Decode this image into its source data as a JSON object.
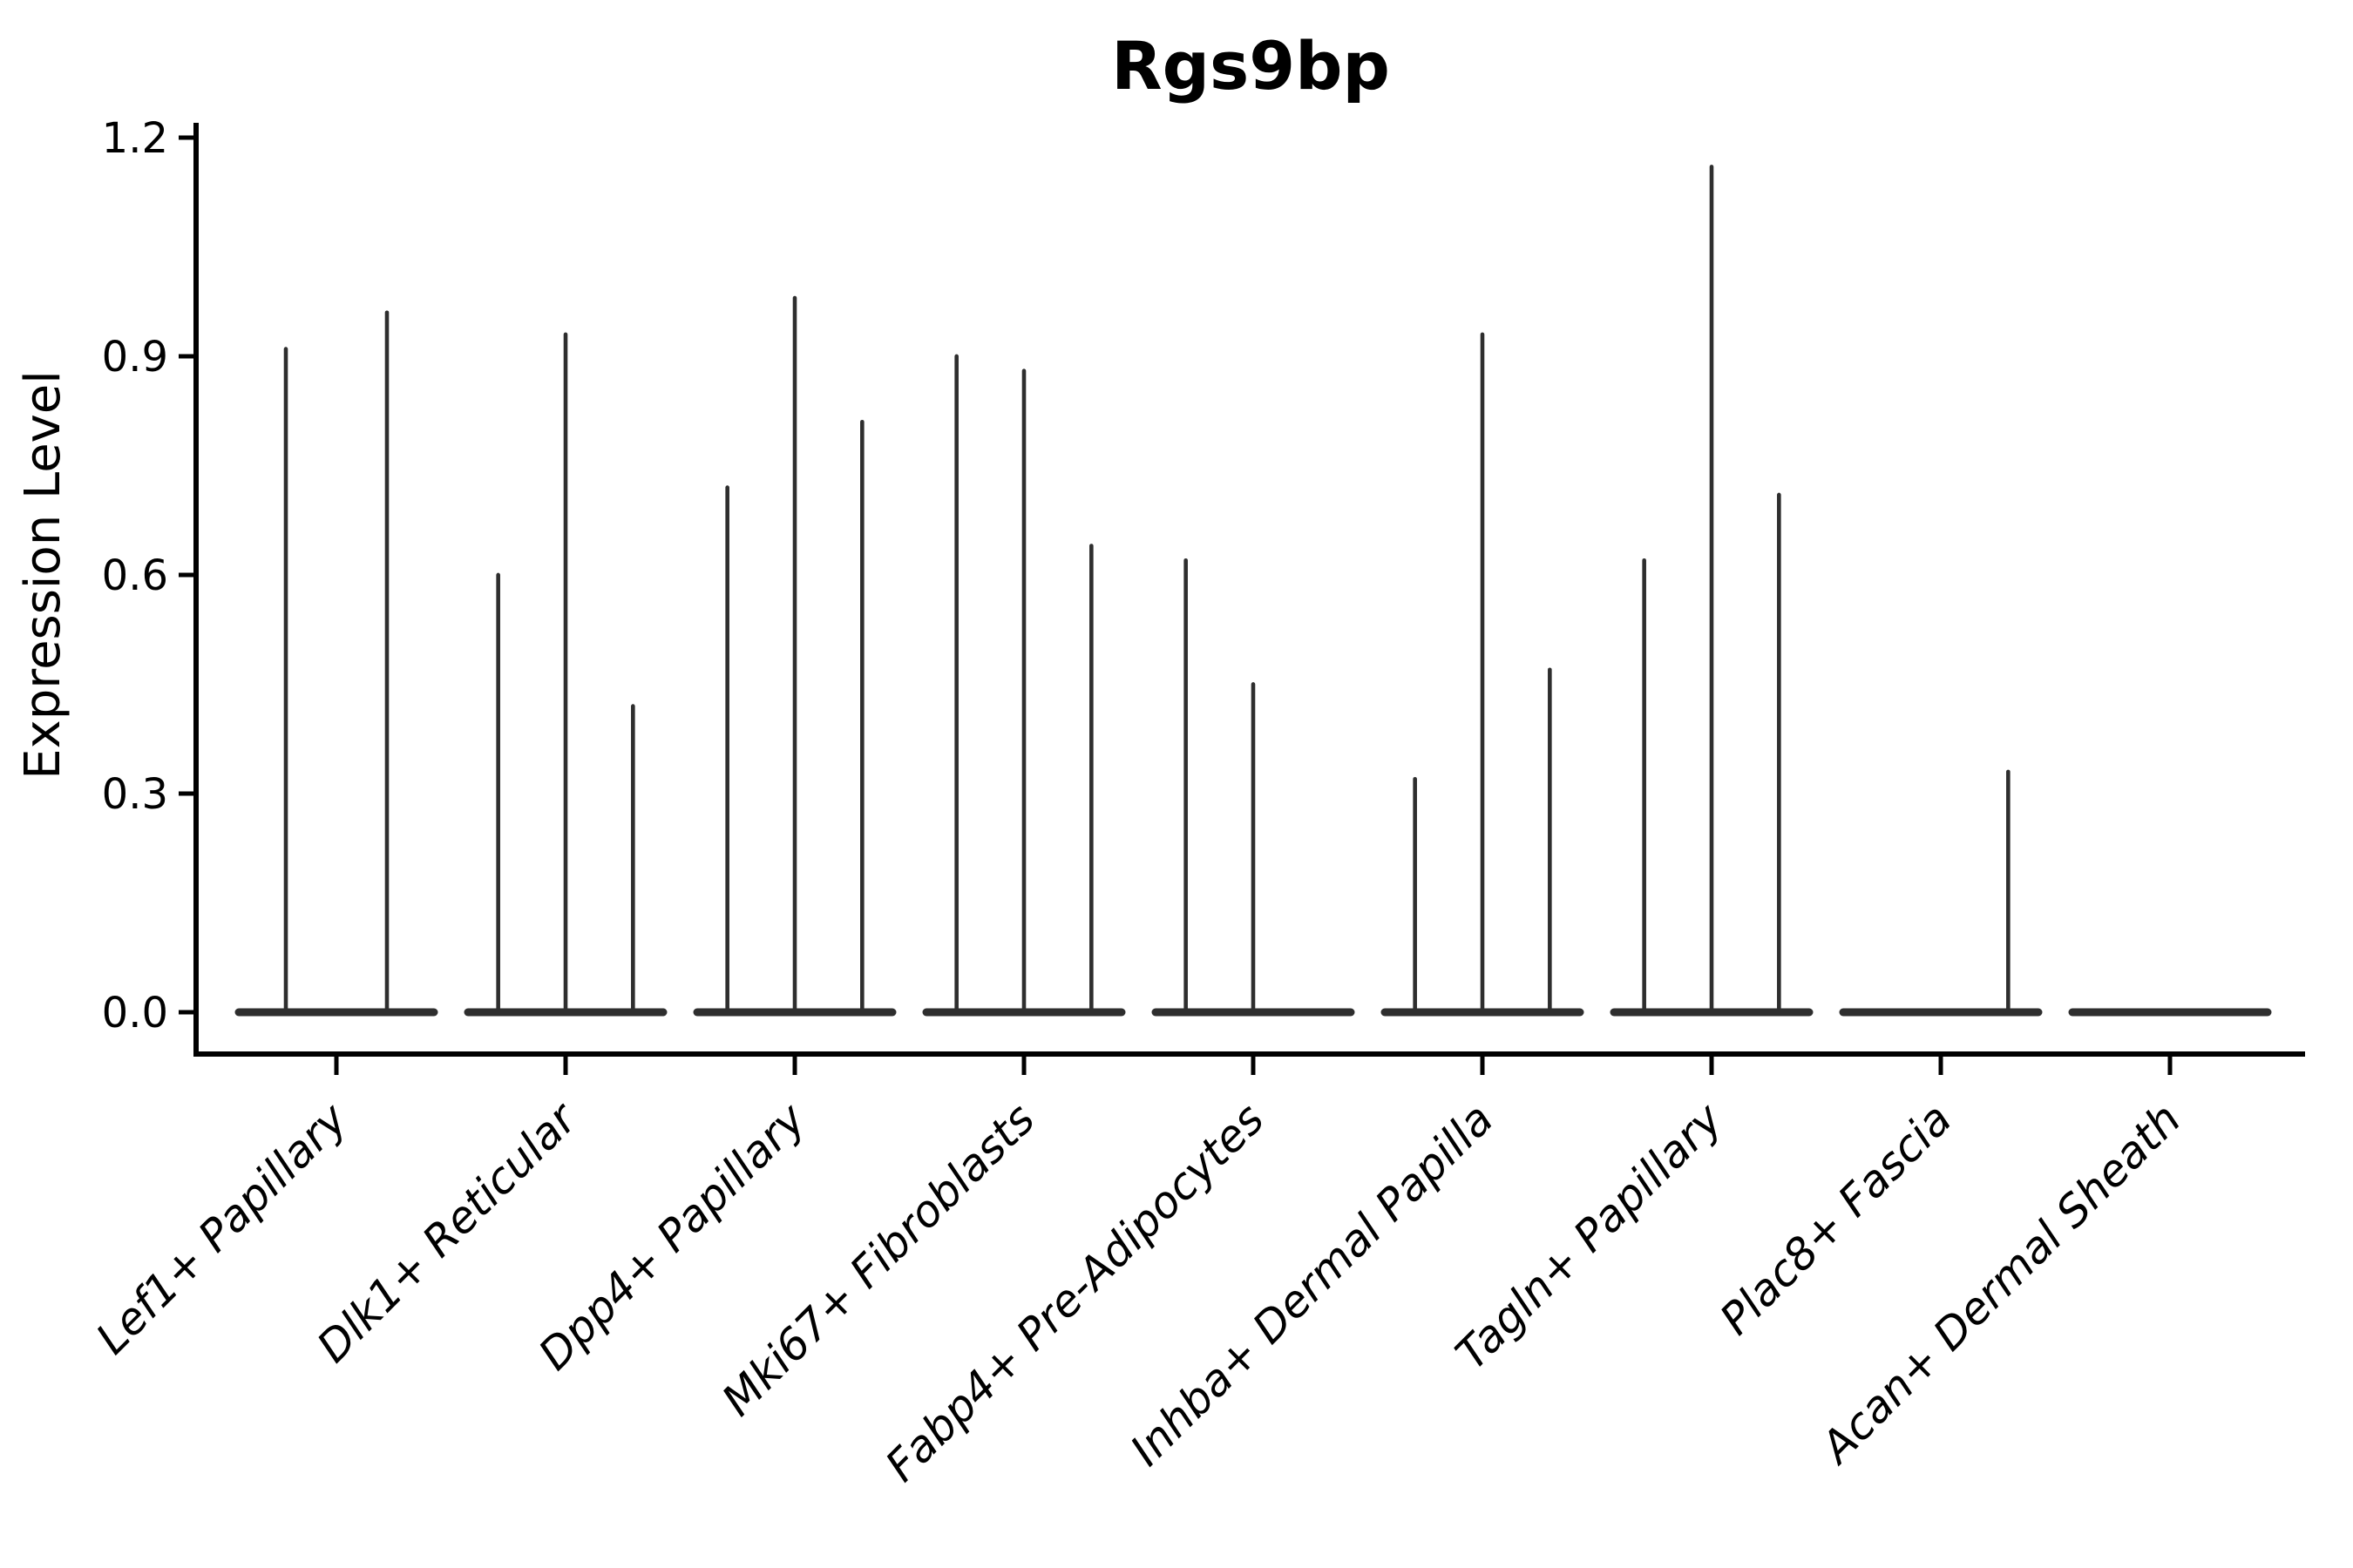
{
  "chart_data": {
    "type": "violin",
    "title": "Rgs9bp",
    "ylabel": "Expression Level",
    "xlabel": "",
    "ylim": [
      0.0,
      1.2
    ],
    "ytick_labels": [
      "0.0",
      "0.3",
      "0.6",
      "0.9",
      "1.2"
    ],
    "ytick_values": [
      0.0,
      0.3,
      0.6,
      0.9,
      1.2
    ],
    "grid": false,
    "legend": "none",
    "line_color": "#2e2e2e",
    "axis_color": "#000000",
    "categories": [
      "Lef1+ Papillary",
      "Dlk1+ Reticular",
      "Dpp4+ Papillary",
      "Mki67+ Fibroblasts",
      "Fabp4+ Pre-Adipocytes",
      "Inhba+ Dermal Papilla",
      "Tagln+ Papillary",
      "Plac8+ Fascia",
      "Acan+ Dermal Sheath"
    ],
    "violin_max_expression": [
      [
        0.91,
        0.96
      ],
      [
        0.6,
        0.93,
        0.42
      ],
      [
        0.72,
        0.98,
        0.81
      ],
      [
        0.9,
        0.88,
        0.64
      ],
      [
        0.62,
        0.45,
        0.0
      ],
      [
        0.32,
        0.93,
        0.47
      ],
      [
        0.62,
        1.16,
        0.71
      ],
      [
        0.0,
        0.0,
        0.33
      ],
      [
        0.0,
        0.0,
        0.0
      ]
    ]
  }
}
